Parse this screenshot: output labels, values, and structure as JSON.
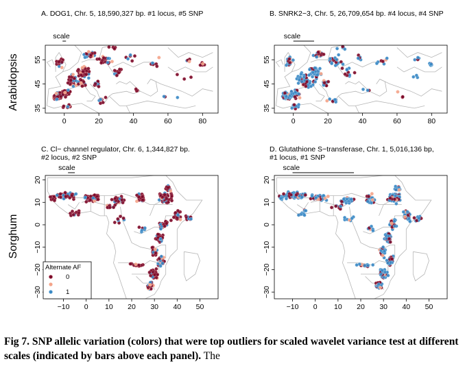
{
  "figure": {
    "row_labels": [
      "Arabidopsis",
      "Sorghum"
    ],
    "caption_bold": "Fig 7. SNP allelic variation (colors) that were top outliers for scaled wavelet variance test at different scales (indicated by bars above each panel).",
    "caption_rest": " The"
  },
  "legend": {
    "title": "Alternate AF",
    "items": [
      {
        "label": "0",
        "color": "#7a0a2a"
      },
      {
        "label": "",
        "color": "#f4a48a"
      },
      {
        "label": "1",
        "color": "#3a88c4"
      }
    ]
  },
  "chart_data": [
    {
      "type": "scatter",
      "panel": "A",
      "title": "A. DOG1, Chr. 5, 18,590,327 bp. #1 locus, #5 SNP",
      "scale_label": "scale",
      "scale_bar": [
        -1,
        1
      ],
      "xlabel": "",
      "ylabel": "",
      "xlim": [
        -11,
        89
      ],
      "ylim": [
        33,
        61
      ],
      "xticks": [
        0,
        20,
        40,
        60,
        80
      ],
      "yticks": [
        35,
        45,
        55
      ],
      "dominant": "red"
    },
    {
      "type": "scatter",
      "panel": "B",
      "title": "B. SNRK2−3, Chr. 5, 26,709,654 bp. #4 locus, #4 SNP",
      "scale_label": "scale",
      "scale_bar": [
        0,
        12
      ],
      "xlabel": "",
      "ylabel": "",
      "xlim": [
        -11,
        89
      ],
      "ylim": [
        33,
        61
      ],
      "xticks": [
        0,
        20,
        40,
        60,
        80
      ],
      "yticks": [
        35,
        45,
        55
      ],
      "dominant": "blue"
    },
    {
      "type": "scatter",
      "panel": "C",
      "title": "C. Cl− channel regulator, Chr. 6, 1,344,827 bp.",
      "title2": "#2 locus, #2 SNP",
      "scale_label": "scale",
      "scale_bar": [
        -8,
        -5
      ],
      "xlabel": "",
      "ylabel": "",
      "xlim": [
        -18,
        58
      ],
      "ylim": [
        -33,
        22
      ],
      "xticks": [
        -10,
        0,
        10,
        20,
        30,
        40,
        50
      ],
      "yticks": [
        -30,
        -20,
        -10,
        0,
        10,
        20
      ],
      "dominant": "red"
    },
    {
      "type": "scatter",
      "panel": "D",
      "title": "D. Glutathione S−transferase, Chr. 1, 5,016,136 bp,",
      "title2": "#1 locus, #1 SNP",
      "scale_label": "scale",
      "scale_bar": [
        -10,
        17
      ],
      "xlabel": "",
      "ylabel": "",
      "xlim": [
        -18,
        58
      ],
      "ylim": [
        -33,
        22
      ],
      "xticks": [
        -10,
        0,
        10,
        20,
        30,
        40,
        50
      ],
      "yticks": [
        -30,
        -20,
        -10,
        0,
        10,
        20
      ],
      "dominant": "blue"
    }
  ]
}
